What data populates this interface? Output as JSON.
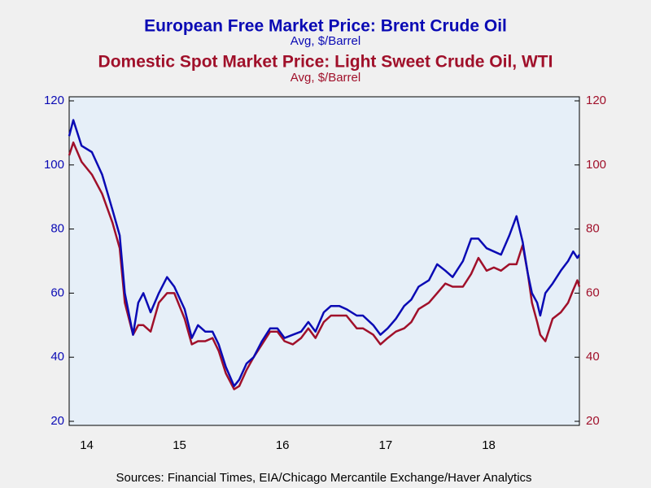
{
  "chart_data": {
    "type": "line",
    "source": "Sources:  Financial Times, EIA/Chicago Mercantile Exchange/Haver Analytics",
    "x": [
      2014.43,
      2014.47,
      2014.55,
      2014.65,
      2014.75,
      2014.85,
      2014.92,
      2014.97,
      2015.05,
      2015.1,
      2015.15,
      2015.22,
      2015.3,
      2015.38,
      2015.45,
      2015.55,
      2015.62,
      2015.68,
      2015.75,
      2015.82,
      2015.88,
      2015.95,
      2016.03,
      2016.08,
      2016.15,
      2016.22,
      2016.3,
      2016.38,
      2016.45,
      2016.52,
      2016.6,
      2016.68,
      2016.75,
      2016.82,
      2016.9,
      2016.97,
      2017.05,
      2017.12,
      2017.22,
      2017.28,
      2017.38,
      2017.45,
      2017.52,
      2017.6,
      2017.68,
      2017.75,
      2017.82,
      2017.92,
      2018.0,
      2018.08,
      2018.15,
      2018.25,
      2018.33,
      2018.4,
      2018.48,
      2018.55,
      2018.62,
      2018.7,
      2018.77,
      2018.83,
      2018.88,
      2018.92,
      2018.97,
      2019.0,
      2019.05,
      2019.12,
      2019.2,
      2019.27,
      2019.32,
      2019.36,
      2019.38
    ],
    "series": [
      {
        "name": "European Free Market Price: Brent Crude Oil",
        "unit": "Avg, $/Barrel",
        "color": "#0a0ab4",
        "axis": "y",
        "values": [
          109,
          114,
          106,
          104,
          97,
          86,
          78,
          60,
          47,
          57,
          60,
          54,
          60,
          65,
          62,
          55,
          46,
          50,
          48,
          48,
          44,
          37,
          31,
          33,
          38,
          40,
          45,
          49,
          49,
          46,
          47,
          48,
          51,
          48,
          54,
          56,
          56,
          55,
          53,
          53,
          50,
          47,
          49,
          52,
          56,
          58,
          62,
          64,
          69,
          67,
          65,
          70,
          77,
          77,
          74,
          73,
          72,
          78,
          84,
          76,
          66,
          60,
          57,
          53,
          60,
          63,
          67,
          70,
          73,
          71,
          72
        ]
      },
      {
        "name": "Domestic Spot Market Price: Light Sweet Crude Oil, WTI",
        "unit": "Avg, $/Barrel",
        "color": "#a0102a",
        "axis": "y2",
        "values": [
          103,
          107,
          101,
          97,
          91,
          82,
          74,
          57,
          47,
          50,
          50,
          48,
          57,
          60,
          60,
          52,
          44,
          45,
          45,
          46,
          42,
          35,
          30,
          31,
          36,
          40,
          44,
          48,
          48,
          45,
          44,
          46,
          49,
          46,
          51,
          53,
          53,
          53,
          49,
          49,
          47,
          44,
          46,
          48,
          49,
          51,
          55,
          57,
          60,
          63,
          62,
          62,
          66,
          71,
          67,
          68,
          67,
          69,
          69,
          75,
          66,
          57,
          51,
          47,
          45,
          52,
          54,
          57,
          61,
          64,
          62
        ]
      }
    ],
    "xlim": [
      2014.43,
      2019.38
    ],
    "xticks": [
      {
        "value": 2014.6,
        "label": "14"
      },
      {
        "value": 2015.5,
        "label": "15"
      },
      {
        "value": 2016.5,
        "label": "16"
      },
      {
        "value": 2017.5,
        "label": "17"
      },
      {
        "value": 2018.5,
        "label": "18"
      }
    ],
    "ylim": [
      20,
      120
    ],
    "yticks": [
      20,
      40,
      60,
      80,
      100,
      120
    ],
    "y2lim": [
      20,
      120
    ],
    "y2ticks": [
      20,
      40,
      60,
      80,
      100,
      120
    ]
  }
}
